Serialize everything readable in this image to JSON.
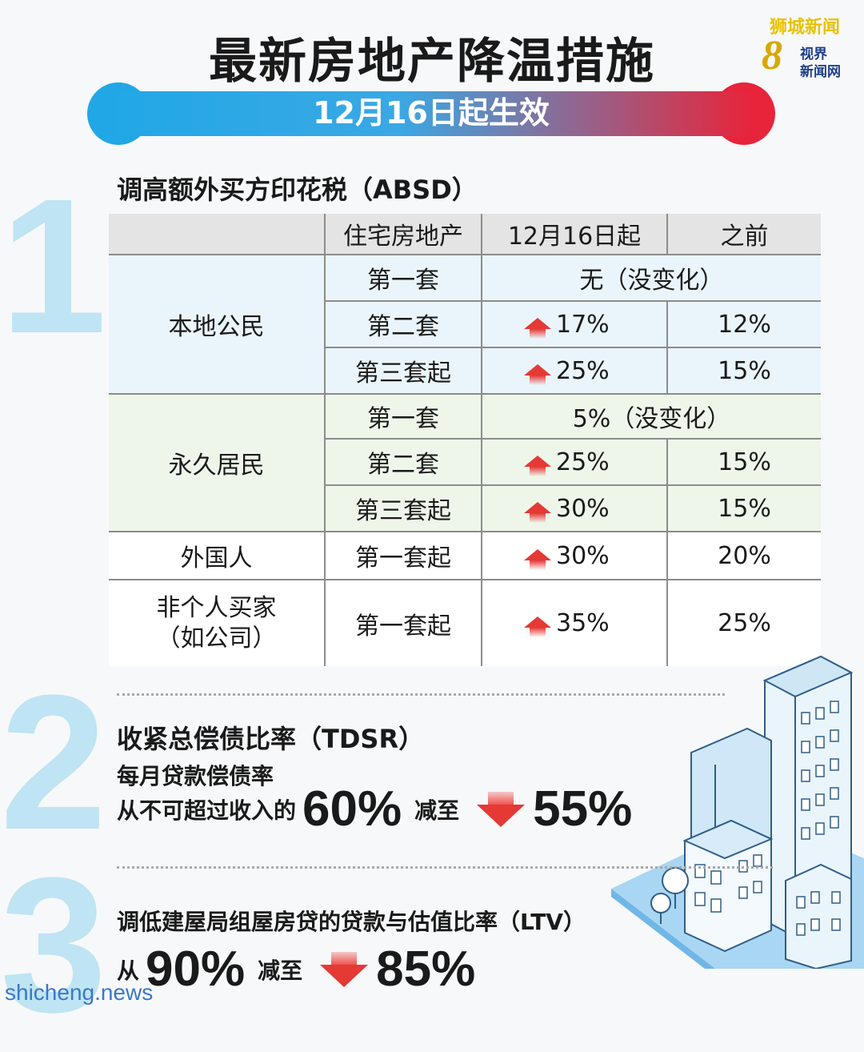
{
  "header": {
    "title": "最新房地产降温措施",
    "effective_date": "12月16日起生效",
    "logo": {
      "top": "狮城新闻",
      "number": "8",
      "line1": "视界",
      "line2": "新闻网"
    }
  },
  "section1": {
    "number": "1",
    "heading": "调高额外买方印花税（ABSD）",
    "table": {
      "headers": [
        "",
        "住宅房地产",
        "12月16日起",
        "之前"
      ],
      "groups": [
        {
          "buyer": "本地公民",
          "rows": [
            {
              "property": "第一套",
              "merged": "无（没变化）"
            },
            {
              "property": "第二套",
              "new": "17%",
              "before": "12%"
            },
            {
              "property": "第三套起",
              "new": "25%",
              "before": "15%"
            }
          ]
        },
        {
          "buyer": "永久居民",
          "rows": [
            {
              "property": "第一套",
              "merged": "5%（没变化）"
            },
            {
              "property": "第二套",
              "new": "25%",
              "before": "15%"
            },
            {
              "property": "第三套起",
              "new": "30%",
              "before": "15%"
            }
          ]
        },
        {
          "buyer": "外国人",
          "rows": [
            {
              "property": "第一套起",
              "new": "30%",
              "before": "20%"
            }
          ]
        },
        {
          "buyer_line1": "非个人买家",
          "buyer_line2": "（如公司）",
          "rows": [
            {
              "property": "第一套起",
              "new": "35%",
              "before": "25%"
            }
          ]
        }
      ]
    }
  },
  "section2": {
    "number": "2",
    "heading": "收紧总偿债比率（TDSR）",
    "subheading": "每月贷款偿债率",
    "from_text": "从不可超过收入的",
    "from_value": "60%",
    "reduce_text": "减至",
    "to_value": "55%"
  },
  "section3": {
    "number": "3",
    "heading": "调低建屋局组屋房贷的贷款与估值比率（LTV）",
    "from_text": "从",
    "from_value": "90%",
    "reduce_text": "减至",
    "to_value": "85%"
  },
  "watermark": "shicheng.news",
  "colors": {
    "banner_left": "#22a7e6",
    "banner_right": "#e8243a",
    "increase_arrow": "#e53935",
    "number_light_blue": "#bfe4f3"
  }
}
